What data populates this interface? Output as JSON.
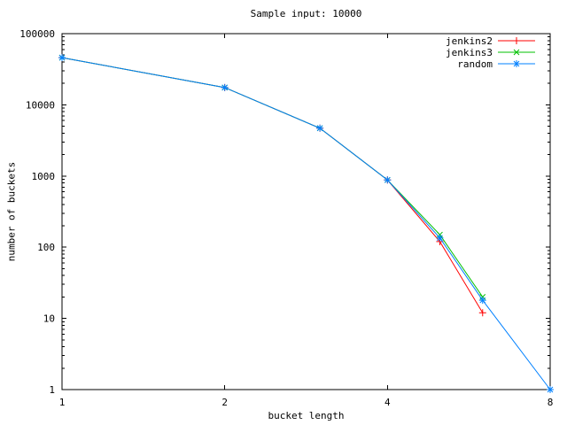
{
  "title": "Sample input: 10000",
  "chart_data": {
    "type": "line",
    "title": "Sample input: 10000",
    "xlabel": "bucket length",
    "ylabel": "number of buckets",
    "x_scale": "log2",
    "y_scale": "log10",
    "xlim": [
      1,
      8
    ],
    "ylim": [
      1,
      100000
    ],
    "x_ticks": [
      1,
      2,
      4,
      8
    ],
    "x_tick_labels": [
      "1",
      "2",
      "4",
      "8"
    ],
    "y_ticks": [
      1,
      10,
      100,
      1000,
      10000,
      100000
    ],
    "y_tick_labels": [
      "1",
      "10",
      "100",
      "1000",
      "10000",
      "100000"
    ],
    "grid": false,
    "legend_position": "top-right",
    "series": [
      {
        "name": "jenkins2",
        "color": "#ff0000",
        "marker": "plus",
        "x": [
          1,
          2,
          3,
          4,
          5,
          6
        ],
        "y": [
          46000,
          17500,
          4700,
          880,
          120,
          12
        ]
      },
      {
        "name": "jenkins3",
        "color": "#00c000",
        "marker": "cross",
        "x": [
          1,
          2,
          3,
          4,
          5,
          6
        ],
        "y": [
          46000,
          17500,
          4700,
          880,
          150,
          20
        ]
      },
      {
        "name": "random",
        "color": "#0080ff",
        "marker": "star",
        "x": [
          1,
          2,
          3,
          4,
          5,
          6,
          8
        ],
        "y": [
          46000,
          17500,
          4700,
          880,
          135,
          18,
          1
        ]
      }
    ]
  }
}
